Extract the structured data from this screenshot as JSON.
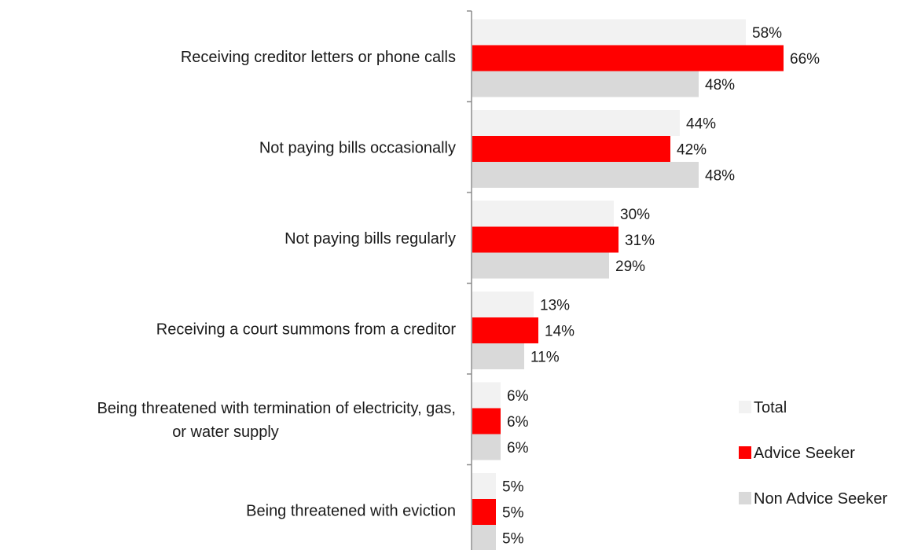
{
  "chart_data": {
    "type": "bar",
    "orientation": "horizontal",
    "categories": [
      [
        "Receiving creditor letters or phone calls"
      ],
      [
        "Not paying bills occasionally"
      ],
      [
        "Not paying bills regularly"
      ],
      [
        "Receiving a court summons from a creditor"
      ],
      [
        "Being threatened with termination of electricity, gas,",
        "or water supply"
      ],
      [
        "Being threatened with eviction"
      ]
    ],
    "series": [
      {
        "name": "Total",
        "color": "#f2f2f2",
        "values": [
          58,
          44,
          30,
          13,
          6,
          5
        ]
      },
      {
        "name": "Advice Seeker",
        "color": "#ff0000",
        "values": [
          66,
          42,
          31,
          14,
          6,
          5
        ]
      },
      {
        "name": "Non Advice Seeker",
        "color": "#d9d9d9",
        "values": [
          48,
          48,
          29,
          11,
          6,
          5
        ]
      }
    ],
    "value_suffix": "%",
    "xlim": [
      0,
      100
    ],
    "grid": false,
    "legend_position": "right"
  }
}
